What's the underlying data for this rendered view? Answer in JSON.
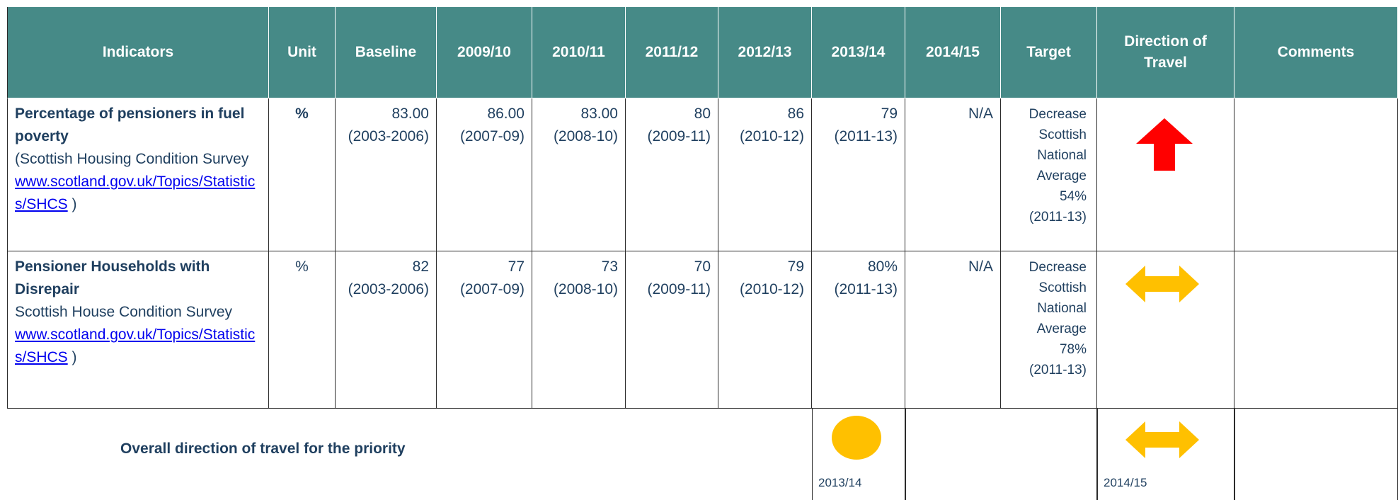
{
  "table": {
    "header": [
      "Indicators",
      "Unit",
      "Baseline",
      "2009/10",
      "2010/11",
      "2011/12",
      "2012/13",
      "2013/14",
      "2014/15",
      "Target",
      "Direction of Travel",
      "Comments"
    ],
    "rows": [
      {
        "title": "Percentage of pensioners in fuel poverty",
        "source": "(Scottish Housing Condition Survey",
        "link": "www.scotland.gov.uk/Topics/Statistics/SHCS",
        "close": ")",
        "unit": "%",
        "values": [
          {
            "value": "83.00",
            "period": "(2003-2006)"
          },
          {
            "value": "86.00",
            "period": "(2007-09)"
          },
          {
            "value": "83.00",
            "period": "(2008-10)"
          },
          {
            "value": "80",
            "period": "(2009-11)"
          },
          {
            "value": "86",
            "period": "(2010-12)"
          },
          {
            "value": "79",
            "period": "(2011-13)"
          },
          {
            "value": "N/A"
          }
        ],
        "target": "Decrease Scottish National Average 54% (2011-13)"
      },
      {
        "title": "Pensioner Households with Disrepair",
        "source": "Scottish House Condition Survey",
        "link": "www.scotland.gov.uk/Topics/Statistics/SHCS",
        "close": ")",
        "unit": "%",
        "values": [
          {
            "value": "82",
            "period": "(2003-2006)"
          },
          {
            "value": "77",
            "period": "(2007-09)"
          },
          {
            "value": "73",
            "period": "(2008-10)"
          },
          {
            "value": "70",
            "period": "(2009-11)"
          },
          {
            "value": "79",
            "period": "(2010-12)"
          },
          {
            "value": "80%",
            "period": "(2011-13)"
          },
          {
            "value": "N/A"
          }
        ],
        "target": "Decrease Scottish National Average 78% (2011-13)"
      }
    ],
    "overall": {
      "label": "Overall direction of travel for the priority",
      "year_1": "2013/14",
      "year_2": "2014/15"
    }
  }
}
